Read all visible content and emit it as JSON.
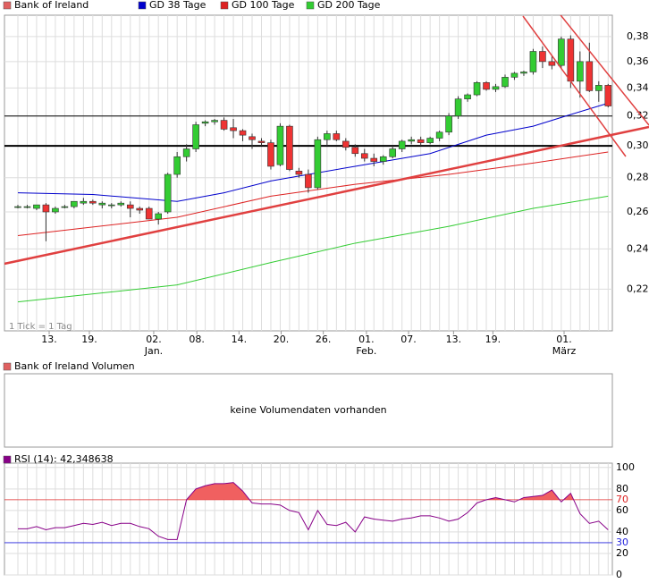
{
  "chart_data": [
    {
      "type": "candlestick",
      "candles": {
        "name": "Bank of Ireland",
        "color": "#e06060",
        "up_color": "#33cc33",
        "down_color": "#ee3333",
        "x": [
          0,
          1,
          2,
          3,
          4,
          5,
          6,
          7,
          8,
          9,
          10,
          11,
          12,
          13,
          14,
          15,
          16,
          17,
          18,
          19,
          20,
          21,
          22,
          23,
          24,
          25,
          26,
          27,
          28,
          29,
          30,
          31,
          32,
          33,
          34,
          35,
          36,
          37,
          38,
          39,
          40,
          41,
          42,
          43,
          44,
          45,
          46,
          47,
          48,
          49,
          50,
          51,
          52,
          53,
          54,
          55,
          56,
          57,
          58,
          59,
          60,
          61,
          62,
          63
        ],
        "open": [
          0.263,
          0.263,
          0.262,
          0.264,
          0.26,
          0.263,
          0.263,
          0.265,
          0.266,
          0.264,
          0.264,
          0.264,
          0.264,
          0.262,
          0.262,
          0.256,
          0.26,
          0.282,
          0.293,
          0.298,
          0.315,
          0.316,
          0.317,
          0.312,
          0.31,
          0.306,
          0.303,
          0.302,
          0.288,
          0.313,
          0.284,
          0.282,
          0.274,
          0.304,
          0.308,
          0.303,
          0.299,
          0.295,
          0.292,
          0.29,
          0.293,
          0.298,
          0.303,
          0.304,
          0.302,
          0.305,
          0.309,
          0.32,
          0.332,
          0.335,
          0.344,
          0.339,
          0.341,
          0.348,
          0.351,
          0.352,
          0.368,
          0.36,
          0.357,
          0.378,
          0.345,
          0.36,
          0.338,
          0.342
        ],
        "high": [
          0.264,
          0.264,
          0.264,
          0.265,
          0.263,
          0.264,
          0.266,
          0.268,
          0.267,
          0.266,
          0.265,
          0.266,
          0.266,
          0.263,
          0.263,
          0.26,
          0.283,
          0.296,
          0.301,
          0.316,
          0.317,
          0.318,
          0.319,
          0.318,
          0.311,
          0.308,
          0.305,
          0.304,
          0.315,
          0.314,
          0.286,
          0.285,
          0.306,
          0.31,
          0.31,
          0.305,
          0.301,
          0.298,
          0.295,
          0.294,
          0.3,
          0.304,
          0.306,
          0.306,
          0.306,
          0.31,
          0.322,
          0.334,
          0.336,
          0.345,
          0.345,
          0.343,
          0.35,
          0.352,
          0.353,
          0.37,
          0.372,
          0.365,
          0.38,
          0.381,
          0.368,
          0.375,
          0.345,
          0.343
        ],
        "low": [
          0.262,
          0.262,
          0.261,
          0.244,
          0.259,
          0.262,
          0.262,
          0.264,
          0.264,
          0.262,
          0.262,
          0.263,
          0.257,
          0.259,
          0.256,
          0.253,
          0.259,
          0.28,
          0.29,
          0.296,
          0.313,
          0.314,
          0.31,
          0.305,
          0.303,
          0.298,
          0.3,
          0.285,
          0.287,
          0.284,
          0.28,
          0.271,
          0.273,
          0.3,
          0.303,
          0.297,
          0.293,
          0.29,
          0.287,
          0.288,
          0.292,
          0.296,
          0.301,
          0.3,
          0.301,
          0.303,
          0.307,
          0.318,
          0.33,
          0.334,
          0.338,
          0.337,
          0.34,
          0.346,
          0.349,
          0.35,
          0.355,
          0.354,
          0.355,
          0.34,
          0.333,
          0.337,
          0.33,
          0.326
        ],
        "close": [
          0.263,
          0.263,
          0.264,
          0.26,
          0.262,
          0.263,
          0.266,
          0.266,
          0.265,
          0.265,
          0.264,
          0.265,
          0.262,
          0.261,
          0.256,
          0.259,
          0.282,
          0.293,
          0.298,
          0.314,
          0.316,
          0.317,
          0.311,
          0.31,
          0.307,
          0.304,
          0.302,
          0.287,
          0.313,
          0.285,
          0.282,
          0.274,
          0.304,
          0.308,
          0.304,
          0.299,
          0.295,
          0.292,
          0.29,
          0.293,
          0.298,
          0.303,
          0.304,
          0.302,
          0.305,
          0.309,
          0.32,
          0.332,
          0.335,
          0.344,
          0.339,
          0.341,
          0.348,
          0.351,
          0.352,
          0.368,
          0.36,
          0.357,
          0.378,
          0.345,
          0.36,
          0.338,
          0.342,
          0.327
        ]
      },
      "series": [
        {
          "name": "GD 38 Tage",
          "color": "#0000cc",
          "x": [
            0,
            8,
            17,
            22,
            27,
            36,
            44,
            50,
            55,
            59,
            63
          ],
          "values": [
            0.271,
            0.27,
            0.266,
            0.271,
            0.278,
            0.287,
            0.295,
            0.307,
            0.313,
            0.321,
            0.329
          ]
        },
        {
          "name": "GD 100 Tage",
          "color": "#dd2222",
          "x": [
            0,
            17,
            27,
            36,
            46,
            55,
            63
          ],
          "values": [
            0.247,
            0.257,
            0.269,
            0.276,
            0.282,
            0.289,
            0.296
          ]
        },
        {
          "name": "GD 200 Tage",
          "color": "#33cc33",
          "x": [
            0,
            17,
            27,
            36,
            46,
            55,
            63
          ],
          "values": [
            0.214,
            0.222,
            0.233,
            0.243,
            0.252,
            0.262,
            0.269
          ]
        }
      ],
      "reference_lines": [
        {
          "value": 0.32,
          "width": 1
        },
        {
          "value": 0.3,
          "width": 2
        }
      ],
      "log_scale": true,
      "ylim": [
        0.201,
        0.398
      ],
      "yticks": [
        {
          "value": 0.22,
          "label": "0,22"
        },
        {
          "value": 0.24,
          "label": "0,24"
        },
        {
          "value": 0.26,
          "label": "0,26"
        },
        {
          "value": 0.28,
          "label": "0,28"
        },
        {
          "value": 0.3,
          "label": "0,30"
        },
        {
          "value": 0.32,
          "label": "0,32"
        },
        {
          "value": 0.34,
          "label": "0,34"
        },
        {
          "value": 0.36,
          "label": "0,36"
        },
        {
          "value": 0.38,
          "label": "0,38"
        }
      ],
      "xlim": [
        -1.43,
        63.45
      ],
      "xticks": [
        {
          "value": 3.34,
          "label": "13."
        },
        {
          "value": 7.63,
          "label": "19."
        },
        {
          "value": 14.5,
          "label": "02."
        },
        {
          "value": 19.1,
          "label": "08."
        },
        {
          "value": 23.6,
          "label": "14."
        },
        {
          "value": 28.1,
          "label": "20."
        },
        {
          "value": 32.6,
          "label": "26."
        },
        {
          "value": 37.2,
          "label": "01."
        },
        {
          "value": 41.7,
          "label": "07."
        },
        {
          "value": 46.5,
          "label": "13."
        },
        {
          "value": 50.7,
          "label": "19."
        },
        {
          "value": 58.3,
          "label": "01."
        }
      ],
      "xtick_sublabels": [
        {
          "value": 14.5,
          "label": "Jan."
        },
        {
          "value": 37.2,
          "label": "Feb."
        },
        {
          "value": 58.3,
          "label": "März"
        }
      ],
      "note": "1 Tick = 1 Tag",
      "grid": true
    },
    {
      "type": "empty",
      "title": "Bank of Ireland Volumen",
      "color": "#e06060",
      "message": "keine Volumendaten vorhanden"
    },
    {
      "type": "rsi",
      "title": "RSI (14): 42,348638",
      "color": "#880088",
      "fill_color": "#f06060",
      "x": [
        0,
        1,
        2,
        3,
        4,
        5,
        6,
        7,
        8,
        9,
        10,
        11,
        12,
        13,
        14,
        15,
        16,
        17,
        18,
        19,
        20,
        21,
        22,
        23,
        24,
        25,
        26,
        27,
        28,
        29,
        30,
        31,
        32,
        33,
        34,
        35,
        36,
        37,
        38,
        39,
        40,
        41,
        42,
        43,
        44,
        45,
        46,
        47,
        48,
        49,
        50,
        51,
        52,
        53,
        54,
        55,
        56,
        57,
        58,
        59,
        60,
        61,
        62,
        63
      ],
      "values": [
        43,
        43,
        45,
        42,
        44,
        44,
        46,
        48,
        47,
        49,
        46,
        48,
        48,
        45,
        43,
        36,
        33,
        33,
        70,
        80,
        83,
        85,
        85,
        86,
        78,
        67,
        66,
        66,
        65,
        60,
        58,
        42,
        60,
        47,
        46,
        49,
        40,
        54,
        52,
        51,
        50,
        52,
        53,
        55,
        55,
        53,
        50,
        52,
        58,
        67,
        70,
        72,
        70,
        68,
        72,
        73,
        74,
        79,
        68,
        76,
        57,
        48,
        50,
        42
      ],
      "xlim": [
        -1.43,
        63.45
      ],
      "ylim": [
        0,
        104
      ],
      "yticks": [
        0,
        20,
        40,
        60,
        80,
        100
      ],
      "bands": [
        {
          "value": 70,
          "color": "#dd2222"
        },
        {
          "value": 30,
          "color": "#2222dd"
        }
      ]
    }
  ]
}
